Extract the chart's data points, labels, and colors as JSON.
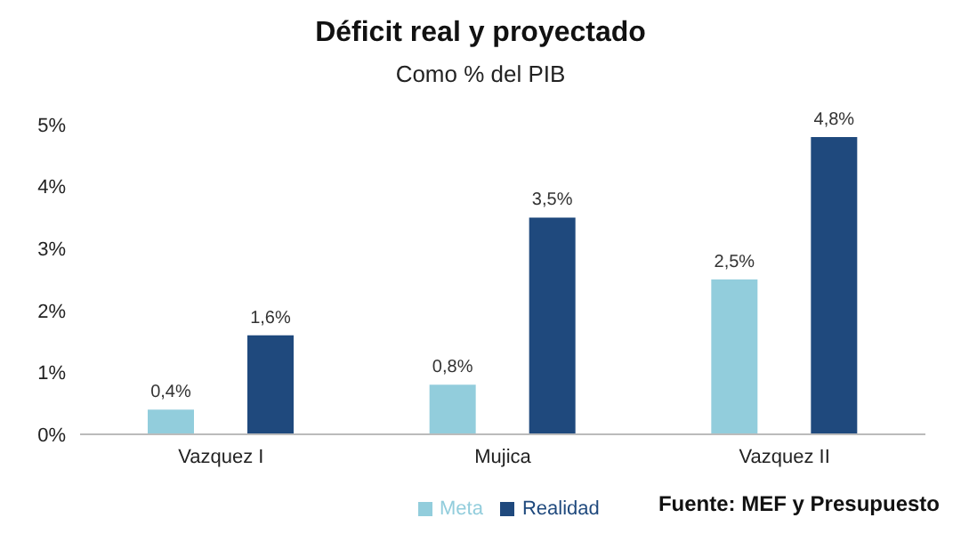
{
  "chart_data": {
    "type": "bar",
    "title": "Déficit real y proyectado",
    "subtitle": "Como % del PIB",
    "categories": [
      "Vazquez I",
      "Mujica",
      "Vazquez II"
    ],
    "series": [
      {
        "name": "Meta",
        "color": "#92cddc",
        "values": [
          0.4,
          0.8,
          2.5
        ],
        "value_labels": [
          "0,4%",
          "0,8%",
          "2,5%"
        ]
      },
      {
        "name": "Realidad",
        "color": "#1f497d",
        "values": [
          1.6,
          3.5,
          4.8
        ],
        "value_labels": [
          "1,6%",
          "3,5%",
          "4,8%"
        ]
      }
    ],
    "ylim": [
      0,
      5
    ],
    "yticks": [
      {
        "value": 0,
        "label": "0%"
      },
      {
        "value": 1,
        "label": "1%"
      },
      {
        "value": 2,
        "label": "2%"
      },
      {
        "value": 3,
        "label": "3%"
      },
      {
        "value": 4,
        "label": "4%"
      },
      {
        "value": 5,
        "label": "5%"
      }
    ],
    "grid": false,
    "legend": "bottom",
    "annotations": [
      "Fuente: MEF y Presupuesto"
    ]
  }
}
